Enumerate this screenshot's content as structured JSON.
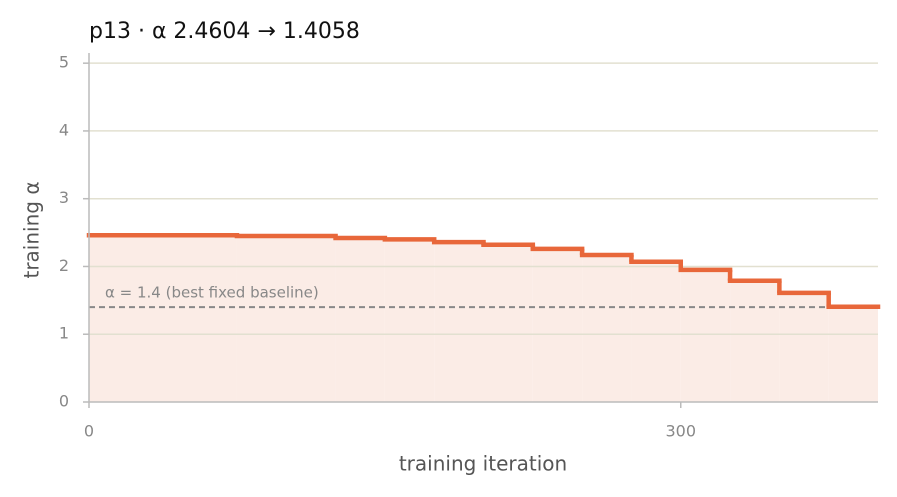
{
  "chart_data": {
    "type": "step",
    "title": "p13   ·   α 2.4604 → 1.4058",
    "x_label": "training iteration",
    "y_label": "training α",
    "x": [
      0,
      75,
      125,
      150,
      175,
      200,
      225,
      250,
      275,
      300,
      325,
      350,
      375,
      400
    ],
    "series": [
      {
        "name": "training α",
        "color": "#e8673a",
        "values": [
          2.4604,
          2.45,
          2.42,
          2.4,
          2.36,
          2.32,
          2.26,
          2.17,
          2.07,
          1.95,
          1.79,
          1.61,
          1.4058,
          1.4058
        ]
      }
    ],
    "baseline": {
      "value": 1.4,
      "label": "α = 1.4 (best fixed baseline)",
      "color": "#888888"
    },
    "fill_color": "#fbece6",
    "xlim": [
      0,
      400
    ],
    "ylim": [
      0,
      5.15
    ],
    "xticks": [
      0,
      300
    ],
    "yticks": [
      0,
      1,
      2,
      3,
      4,
      5
    ],
    "grid": true
  }
}
